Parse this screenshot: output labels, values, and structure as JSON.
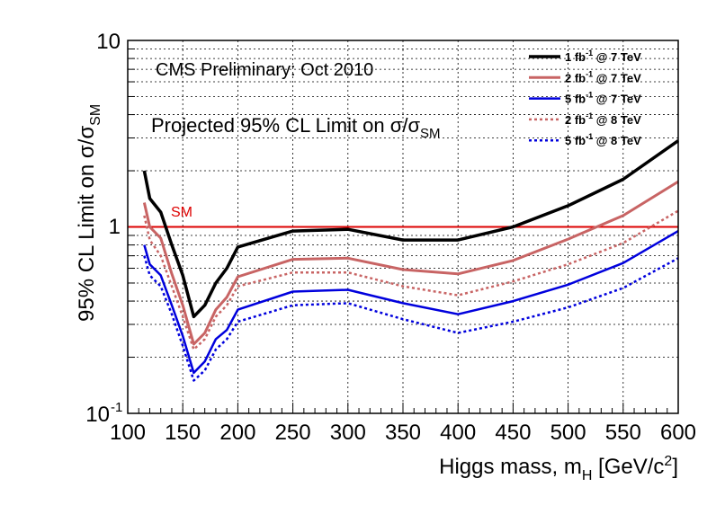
{
  "chart_data": {
    "type": "line",
    "y_scale": "log",
    "xlim": [
      100,
      600
    ],
    "ylim": [
      0.1,
      10
    ],
    "grid": true,
    "legend_position": "top-right",
    "header_text": "CMS Preliminary: Oct 2010",
    "plot_title_prefix": "Projected 95% CL Limit on ",
    "xlabel": {
      "main": "Higgs mass, m",
      "sub": "H",
      "unit_open": " [GeV/c",
      "sup": "2",
      "unit_close": "]"
    },
    "ylabel": {
      "main": "95% CL Limit on σ/σ",
      "sub": "SM"
    },
    "x_ticks": [
      "100",
      "150",
      "200",
      "250",
      "300",
      "350",
      "400",
      "450",
      "500",
      "550",
      "600"
    ],
    "y_ticks": {
      "top": "10",
      "mid": "1",
      "bottom_base": "10",
      "bottom_exp": "-1"
    },
    "reference_line": {
      "label": "SM",
      "y": 1,
      "color": "#dd0000"
    },
    "series": [
      {
        "name": "1 fb⁻¹ @ 7 TeV",
        "label_lumi": "1 fb",
        "label_rest": " @ 7 TeV",
        "color": "#000000",
        "dash": "solid",
        "width": 3.5,
        "x": [
          115,
          120,
          130,
          140,
          150,
          160,
          170,
          180,
          190,
          200,
          250,
          300,
          350,
          400,
          450,
          500,
          550,
          600
        ],
        "y": [
          2.0,
          1.42,
          1.2,
          0.8,
          0.55,
          0.33,
          0.38,
          0.5,
          0.6,
          0.78,
          0.95,
          0.97,
          0.85,
          0.85,
          1.0,
          1.3,
          1.8,
          2.9
        ]
      },
      {
        "name": "2 fb⁻¹ @ 7 TeV",
        "label_lumi": "2 fb",
        "label_rest": " @ 7 TeV",
        "color": "#c86464",
        "dash": "solid",
        "width": 3,
        "x": [
          115,
          120,
          130,
          140,
          150,
          160,
          170,
          180,
          190,
          200,
          250,
          300,
          350,
          400,
          450,
          500,
          550,
          600
        ],
        "y": [
          1.35,
          1.0,
          0.87,
          0.56,
          0.38,
          0.235,
          0.27,
          0.36,
          0.42,
          0.54,
          0.67,
          0.68,
          0.59,
          0.56,
          0.66,
          0.86,
          1.15,
          1.75
        ]
      },
      {
        "name": "5 fb⁻¹ @ 7 TeV",
        "label_lumi": "5 fb",
        "label_rest": " @ 7 TeV",
        "color": "#0000dd",
        "dash": "solid",
        "width": 2.5,
        "x": [
          115,
          120,
          130,
          140,
          150,
          160,
          170,
          180,
          190,
          200,
          250,
          300,
          350,
          400,
          450,
          500,
          550,
          600
        ],
        "y": [
          0.8,
          0.63,
          0.55,
          0.38,
          0.26,
          0.165,
          0.19,
          0.25,
          0.28,
          0.36,
          0.45,
          0.46,
          0.39,
          0.34,
          0.4,
          0.49,
          0.64,
          0.95
        ]
      },
      {
        "name": "2 fb⁻¹ @ 8 TeV",
        "label_lumi": "2 fb",
        "label_rest": " @ 8 TeV",
        "color": "#c86464",
        "dash": "dot",
        "width": 2.5,
        "x": [
          115,
          120,
          130,
          140,
          150,
          160,
          170,
          180,
          190,
          200,
          250,
          300,
          350,
          400,
          450,
          500,
          550,
          600
        ],
        "y": [
          1.15,
          0.85,
          0.7,
          0.48,
          0.33,
          0.22,
          0.25,
          0.33,
          0.38,
          0.48,
          0.57,
          0.57,
          0.48,
          0.43,
          0.51,
          0.63,
          0.82,
          1.22
        ]
      },
      {
        "name": "5 fb⁻¹ @ 8 TeV",
        "label_lumi": "5 fb",
        "label_rest": " @ 8 TeV",
        "color": "#0000dd",
        "dash": "dot",
        "width": 2.5,
        "x": [
          115,
          120,
          130,
          140,
          150,
          160,
          170,
          180,
          190,
          200,
          250,
          300,
          350,
          400,
          450,
          500,
          550,
          600
        ],
        "y": [
          0.7,
          0.55,
          0.48,
          0.34,
          0.23,
          0.15,
          0.17,
          0.22,
          0.25,
          0.31,
          0.38,
          0.39,
          0.32,
          0.27,
          0.31,
          0.37,
          0.47,
          0.68
        ]
      }
    ]
  }
}
